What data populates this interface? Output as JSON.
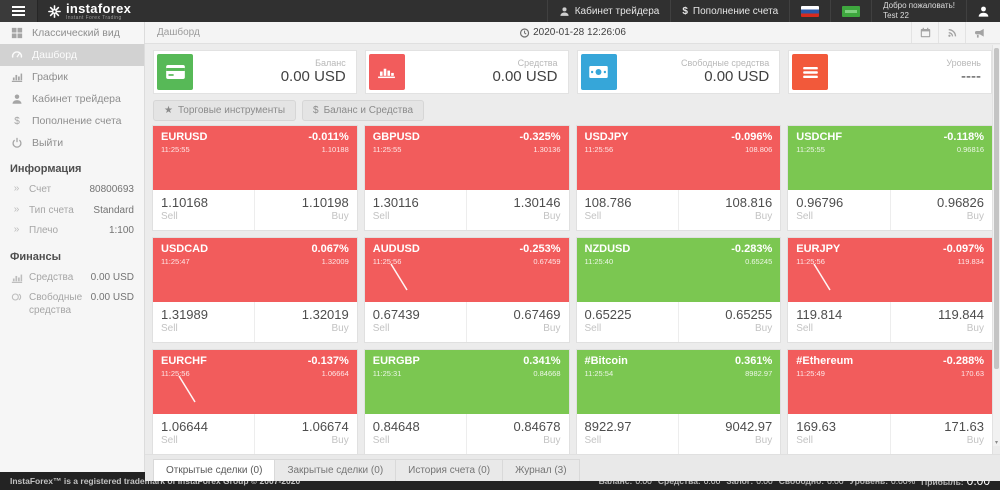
{
  "header": {
    "logo_text": "instaforex",
    "logo_tagline": "Instant Forex Trading",
    "trader_cabinet": "Кабинет трейдера",
    "deposit": "Пополнение счета",
    "welcome_line1": "Добро пожаловать!",
    "welcome_line2": "Test 22"
  },
  "sidebar": {
    "items": [
      {
        "id": "classic-view",
        "label": "Классический вид",
        "icon": "grid-icon",
        "active": false
      },
      {
        "id": "dashboard",
        "label": "Дашборд",
        "icon": "gauge-icon",
        "active": true
      },
      {
        "id": "chart",
        "label": "График",
        "icon": "bar-chart-icon",
        "active": false
      },
      {
        "id": "trader-cabinet",
        "label": "Кабинет трейдера",
        "icon": "person-icon",
        "active": false
      },
      {
        "id": "deposit",
        "label": "Пополнение счета",
        "icon": "dollar-icon",
        "active": false
      },
      {
        "id": "logout",
        "label": "Выйти",
        "icon": "power-icon",
        "active": false
      }
    ],
    "info_title": "Информация",
    "info": [
      {
        "label": "Счет",
        "value": "80800693"
      },
      {
        "label": "Тип счета",
        "value": "Standard"
      },
      {
        "label": "Плечо",
        "value": "1:100"
      }
    ],
    "finance_title": "Финансы",
    "finance": [
      {
        "label": "Средства",
        "value": "0.00 USD",
        "icon": "bar-chart-icon"
      },
      {
        "label": "Свободные средства",
        "value": "0.00 USD",
        "icon": "coins-icon"
      }
    ]
  },
  "topbar": {
    "breadcrumb": "Дашборд",
    "datetime": "2020-01-28 12:26:06"
  },
  "cards": [
    {
      "id": "balance",
      "label": "Баланс",
      "value": "0.00 USD",
      "color": "#57b957",
      "icon": "credit-card-icon"
    },
    {
      "id": "equity",
      "label": "Средства",
      "value": "0.00 USD",
      "color": "#f25c5c",
      "icon": "bars-white-icon"
    },
    {
      "id": "free-margin",
      "label": "Свободные средства",
      "value": "0.00 USD",
      "color": "#36a6d9",
      "icon": "banknote-icon"
    },
    {
      "id": "level",
      "label": "Уровень",
      "value": "----",
      "color": "#f2593a",
      "icon": "list-icon"
    }
  ],
  "toolbar": {
    "instruments_label": "Торговые инструменты",
    "balance_label": "Баланс и Средства"
  },
  "labels": {
    "sell": "Sell",
    "buy": "Buy"
  },
  "tiles": [
    {
      "symbol": "EURUSD",
      "time": "11:25:55",
      "change": "-0.011%",
      "last": "1.10188",
      "sell": "1.10168",
      "buy": "1.10198",
      "bg": "red",
      "sparkline": false
    },
    {
      "symbol": "GBPUSD",
      "time": "11:25:55",
      "change": "-0.325%",
      "last": "1.30136",
      "sell": "1.30116",
      "buy": "1.30146",
      "bg": "red",
      "sparkline": false
    },
    {
      "symbol": "USDJPY",
      "time": "11:25:56",
      "change": "-0.096%",
      "last": "108.806",
      "sell": "108.786",
      "buy": "108.816",
      "bg": "red",
      "sparkline": false
    },
    {
      "symbol": "USDCHF",
      "time": "11:25:55",
      "change": "-0.118%",
      "last": "0.96816",
      "sell": "0.96796",
      "buy": "0.96826",
      "bg": "green",
      "sparkline": false
    },
    {
      "symbol": "USDCAD",
      "time": "11:25:47",
      "change": "0.067%",
      "last": "1.32009",
      "sell": "1.31989",
      "buy": "1.32019",
      "bg": "red",
      "sparkline": false
    },
    {
      "symbol": "AUDUSD",
      "time": "11:25:56",
      "change": "-0.253%",
      "last": "0.67459",
      "sell": "0.67439",
      "buy": "0.67469",
      "bg": "red",
      "sparkline": true
    },
    {
      "symbol": "NZDUSD",
      "time": "11:25:40",
      "change": "-0.283%",
      "last": "0.65245",
      "sell": "0.65225",
      "buy": "0.65255",
      "bg": "green",
      "sparkline": false
    },
    {
      "symbol": "EURJPY",
      "time": "11:25:56",
      "change": "-0.097%",
      "last": "119.834",
      "sell": "119.814",
      "buy": "119.844",
      "bg": "red",
      "sparkline": true
    },
    {
      "symbol": "EURCHF",
      "time": "11:25:56",
      "change": "-0.137%",
      "last": "1.06664",
      "sell": "1.06644",
      "buy": "1.06674",
      "bg": "red",
      "sparkline": true
    },
    {
      "symbol": "EURGBP",
      "time": "11:25:31",
      "change": "0.341%",
      "last": "0.84668",
      "sell": "0.84648",
      "buy": "0.84678",
      "bg": "green",
      "sparkline": false
    },
    {
      "symbol": "#Bitcoin",
      "time": "11:25:54",
      "change": "0.361%",
      "last": "8982.97",
      "sell": "8922.97",
      "buy": "9042.97",
      "bg": "green",
      "sparkline": false
    },
    {
      "symbol": "#Ethereum",
      "time": "11:25:49",
      "change": "-0.288%",
      "last": "170.63",
      "sell": "169.63",
      "buy": "171.63",
      "bg": "red",
      "sparkline": false
    }
  ],
  "tabs": [
    {
      "id": "open-trades",
      "label": "Открытые сделки (0)",
      "active": true
    },
    {
      "id": "closed-trades",
      "label": "Закрытые сделки (0)",
      "active": false
    },
    {
      "id": "account-history",
      "label": "История счета (0)",
      "active": false
    },
    {
      "id": "journal",
      "label": "Журнал (3)",
      "active": false
    }
  ],
  "footer": {
    "copyright": "InstaForex™ is a registered trademark of InstaForex Group © 2007-2020",
    "summary": [
      {
        "label": "Баланс:",
        "value": "0.00",
        "big": false
      },
      {
        "label": "Средства:",
        "value": "0.00",
        "big": false
      },
      {
        "label": "Залог:",
        "value": "0.00",
        "big": false
      },
      {
        "label": "Свободно:",
        "value": "0.00",
        "big": false
      },
      {
        "label": "Уровень:",
        "value": "0.00%",
        "big": false
      },
      {
        "label": "Прибыль:",
        "value": "0.00",
        "big": true
      }
    ]
  },
  "icon_glyphs": {
    "star": "★",
    "dollar": "$",
    "chevrons": "»",
    "down_arrow": "▾"
  },
  "colors": {
    "tile_red": "#f25c5c",
    "tile_green": "#7bc751",
    "header_bg": "#303030",
    "sidebar_active_bg": "#d2d2d2"
  }
}
